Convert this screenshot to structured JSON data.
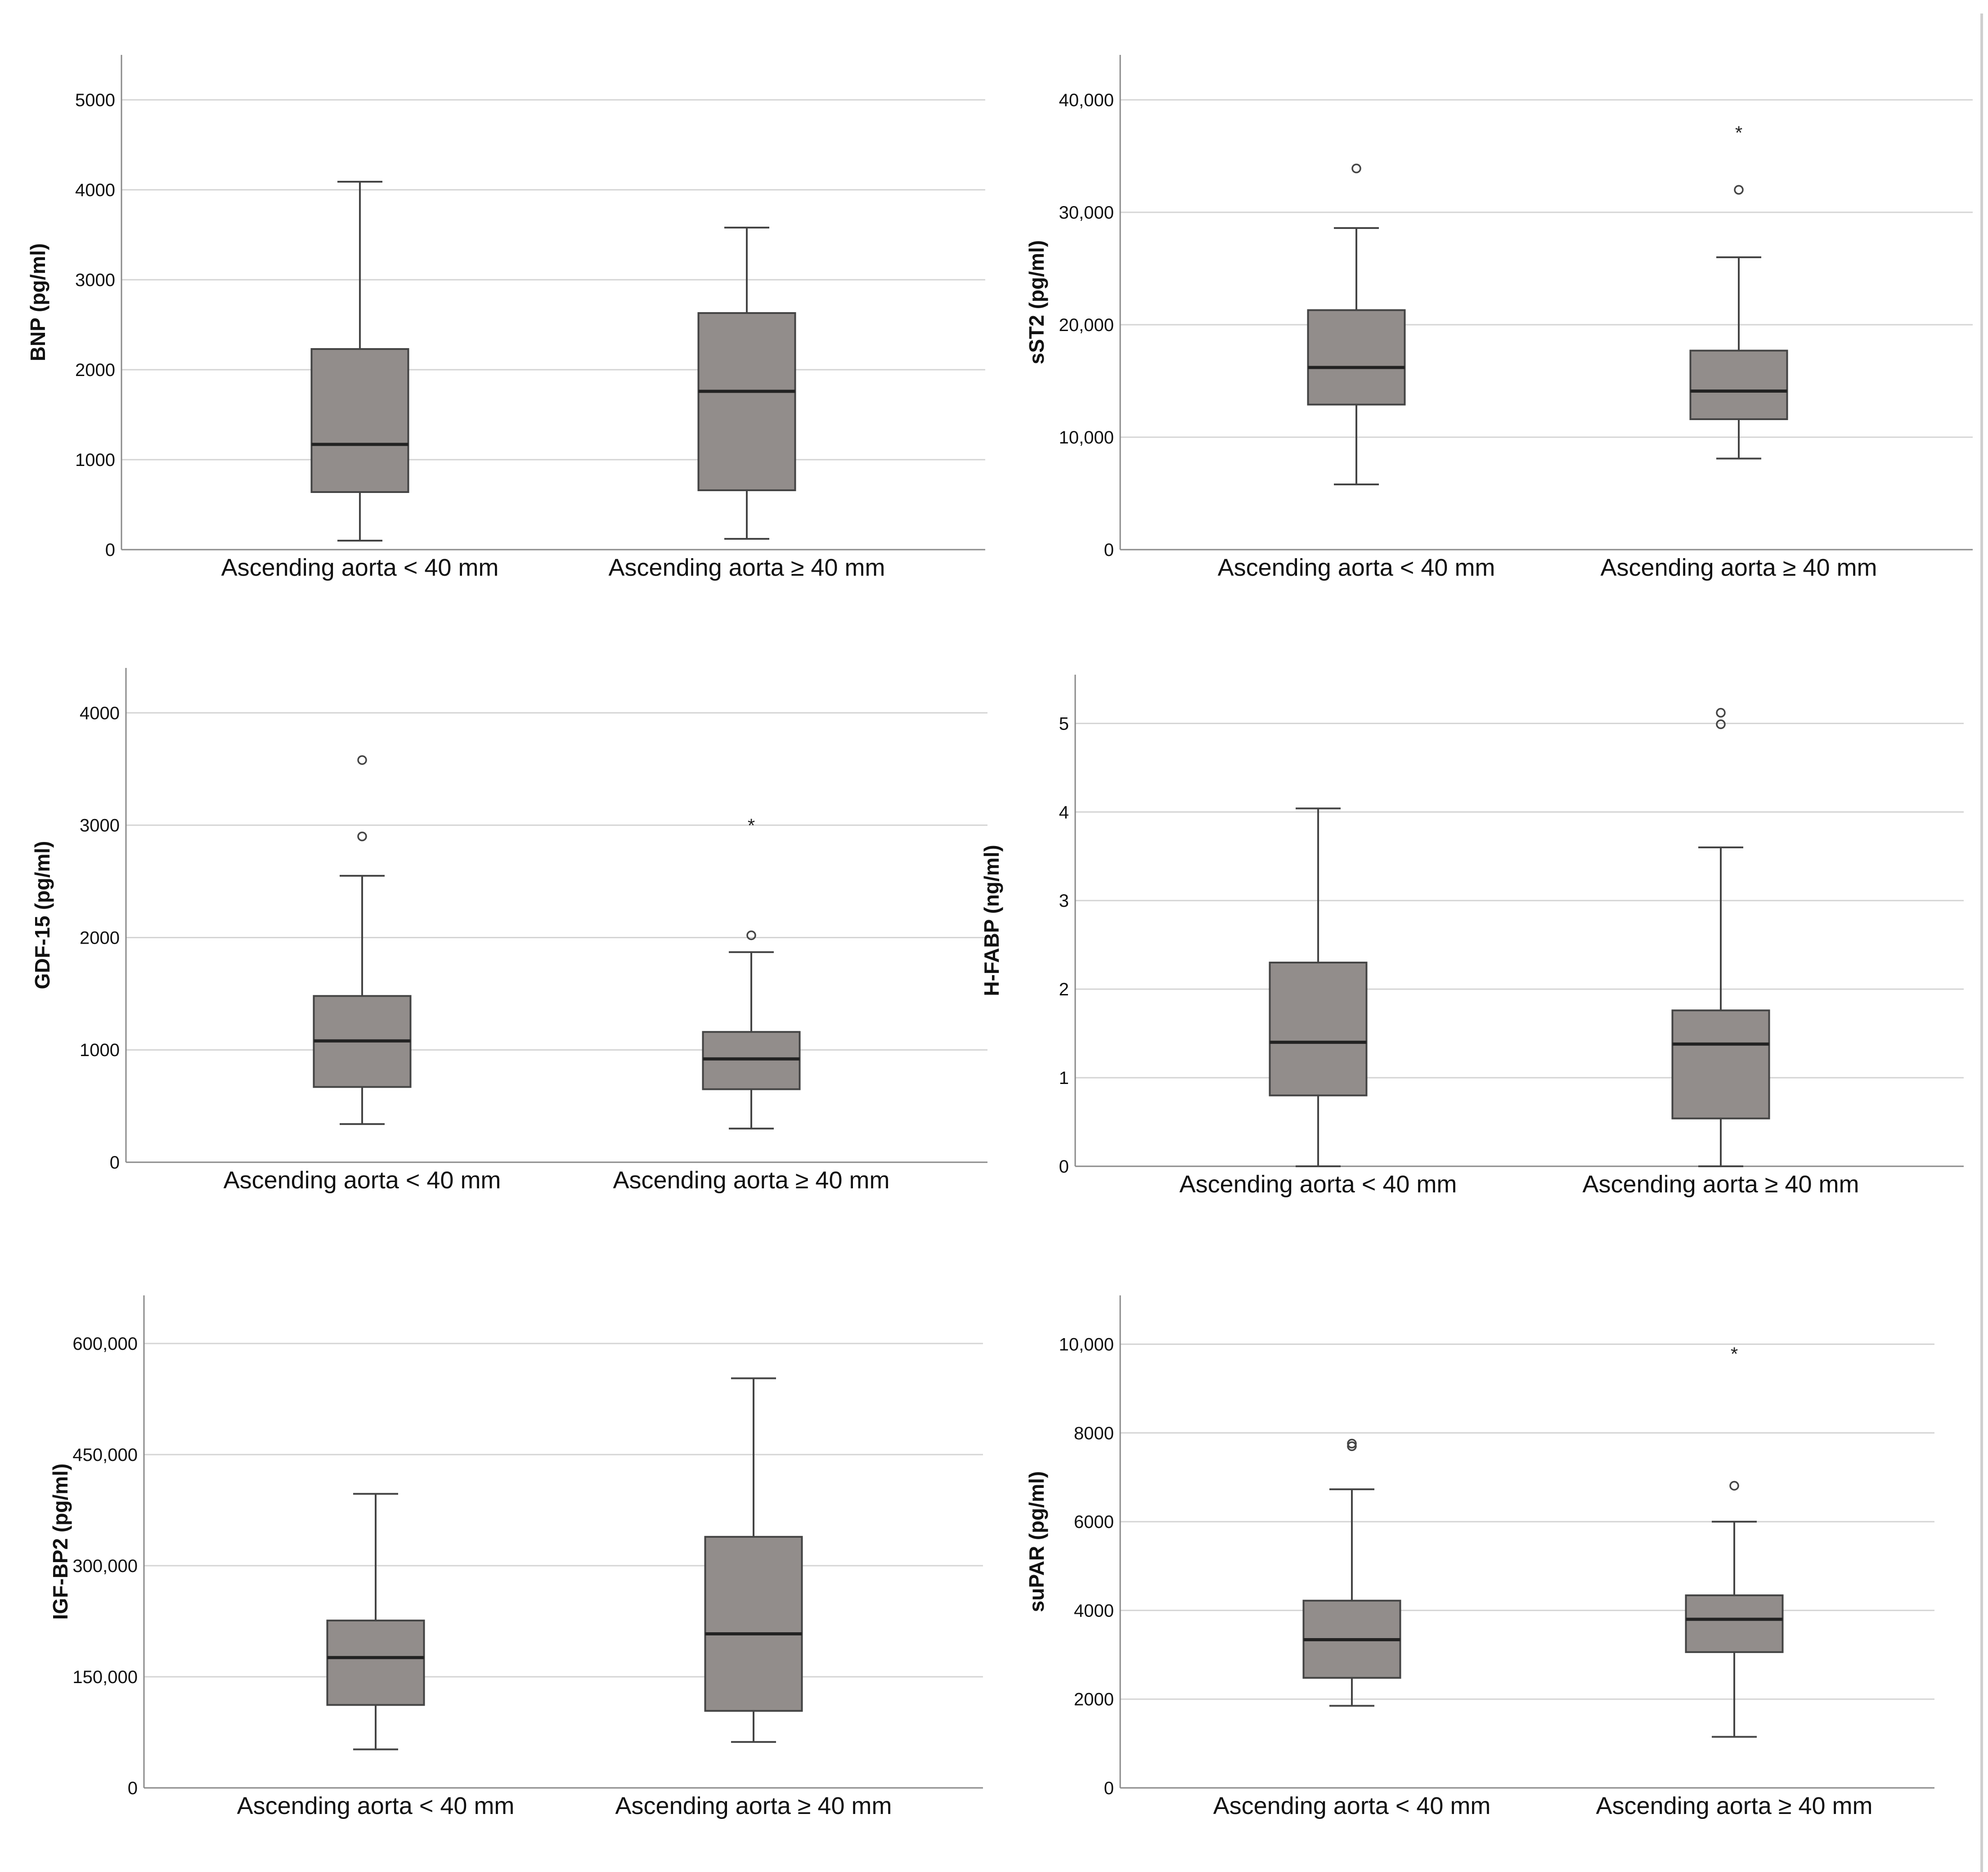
{
  "style": {
    "box_fill": "#928d8b",
    "box_stroke": "#444444",
    "grid_color": "#d4d4d4",
    "axis_color": "#8a8a8a"
  },
  "chart_data": [
    {
      "type": "box",
      "ylabel": "BNP (pg/ml)",
      "ylim": [
        0,
        5500
      ],
      "yticks": [
        0,
        1000,
        2000,
        3000,
        4000,
        5000
      ],
      "ytick_labels": [
        "0",
        "1000",
        "2000",
        "3000",
        "4000",
        "5000"
      ],
      "grid": true,
      "categories": [
        "Ascending aorta < 40 mm",
        "Ascending aorta ≥ 40 mm"
      ],
      "boxes": [
        {
          "min": 100,
          "q1": 640,
          "median": 1170,
          "q3": 2230,
          "max": 4090,
          "outliers": [],
          "extremes": []
        },
        {
          "min": 120,
          "q1": 660,
          "median": 1760,
          "q3": 2630,
          "max": 3580,
          "outliers": [],
          "extremes": []
        }
      ]
    },
    {
      "type": "box",
      "ylabel": "sST2 (pg/ml)",
      "ylim": [
        0,
        44000
      ],
      "yticks": [
        0,
        10000,
        20000,
        30000,
        40000
      ],
      "ytick_labels": [
        "0",
        "10,000",
        "20,000",
        "30,000",
        "40,000"
      ],
      "grid": true,
      "categories": [
        "Ascending aorta < 40 mm",
        "Ascending aorta ≥ 40 mm"
      ],
      "boxes": [
        {
          "min": 5800,
          "q1": 12900,
          "median": 16200,
          "q3": 21300,
          "max": 28600,
          "outliers": [
            33900
          ],
          "extremes": []
        },
        {
          "min": 8100,
          "q1": 11600,
          "median": 14100,
          "q3": 17700,
          "max": 26000,
          "outliers": [
            32000
          ],
          "extremes": [
            37300
          ]
        }
      ]
    },
    {
      "type": "box",
      "ylabel": "GDF-15 (pg/ml)",
      "ylim": [
        0,
        4400
      ],
      "yticks": [
        0,
        1000,
        2000,
        3000,
        4000
      ],
      "ytick_labels": [
        "0",
        "1000",
        "2000",
        "3000",
        "4000"
      ],
      "grid": true,
      "categories": [
        "Ascending aorta < 40 mm",
        "Ascending aorta ≥ 40 mm"
      ],
      "boxes": [
        {
          "min": 340,
          "q1": 670,
          "median": 1080,
          "q3": 1480,
          "max": 2550,
          "outliers": [
            2900,
            3580
          ],
          "extremes": []
        },
        {
          "min": 300,
          "q1": 650,
          "median": 920,
          "q3": 1160,
          "max": 1870,
          "outliers": [
            2020
          ],
          "extremes": [
            3020
          ]
        }
      ]
    },
    {
      "type": "box",
      "ylabel": "H-FABP (ng/ml)",
      "ylim": [
        0,
        5.55
      ],
      "yticks": [
        0,
        1,
        2,
        3,
        4,
        5
      ],
      "ytick_labels": [
        "0",
        "1",
        "2",
        "3",
        "4",
        "5"
      ],
      "grid": true,
      "categories": [
        "Ascending aorta < 40 mm",
        "Ascending aorta ≥ 40 mm"
      ],
      "boxes": [
        {
          "min": 0.0,
          "q1": 0.8,
          "median": 1.4,
          "q3": 2.3,
          "max": 4.04,
          "outliers": [],
          "extremes": []
        },
        {
          "min": 0.0,
          "q1": 0.54,
          "median": 1.38,
          "q3": 1.76,
          "max": 3.6,
          "outliers": [
            4.99,
            5.12
          ],
          "extremes": []
        }
      ]
    },
    {
      "type": "box",
      "ylabel": "IGF-BP2 (pg/ml)",
      "ylim": [
        0,
        665000
      ],
      "yticks": [
        0,
        150000,
        300000,
        450000,
        600000
      ],
      "ytick_labels": [
        "0",
        "150,000",
        "300,000",
        "450,000",
        "600,000"
      ],
      "grid": true,
      "categories": [
        "Ascending aorta < 40 mm",
        "Ascending aorta ≥ 40 mm"
      ],
      "boxes": [
        {
          "min": 52000,
          "q1": 112000,
          "median": 176000,
          "q3": 226000,
          "max": 397000,
          "outliers": [],
          "extremes": []
        },
        {
          "min": 62000,
          "q1": 104000,
          "median": 208000,
          "q3": 339000,
          "max": 553000,
          "outliers": [],
          "extremes": []
        }
      ]
    },
    {
      "type": "box",
      "ylabel": "suPAR (pg/ml)",
      "ylim": [
        0,
        11100
      ],
      "yticks": [
        0,
        2000,
        4000,
        6000,
        8000,
        10000
      ],
      "ytick_labels": [
        "0",
        "2000",
        "4000",
        "6000",
        "8000",
        "10,000"
      ],
      "grid": true,
      "categories": [
        "Ascending aorta < 40 mm",
        "Ascending aorta ≥ 40 mm"
      ],
      "boxes": [
        {
          "min": 1850,
          "q1": 2480,
          "median": 3340,
          "q3": 4220,
          "max": 6730,
          "outliers": [
            7700,
            7760
          ],
          "extremes": []
        },
        {
          "min": 1150,
          "q1": 3060,
          "median": 3800,
          "q3": 4340,
          "max": 6000,
          "outliers": [
            6810
          ],
          "extremes": [
            9840
          ]
        }
      ]
    }
  ]
}
